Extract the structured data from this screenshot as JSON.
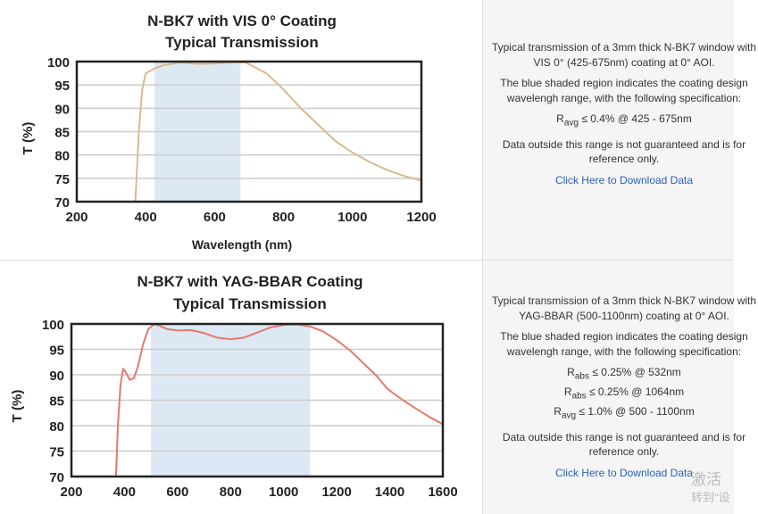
{
  "chart_data": [
    {
      "type": "line",
      "title": [
        "N-BK7 with VIS 0° Coating",
        "Typical Transmission"
      ],
      "xlabel": "Wavelength (nm)",
      "ylabel": "T (%)",
      "xlim": [
        200,
        1200
      ],
      "ylim": [
        70,
        100
      ],
      "xticks": [
        200,
        400,
        600,
        800,
        1000,
        1200
      ],
      "yticks": [
        70,
        75,
        80,
        85,
        90,
        95,
        100
      ],
      "grid": "horizontal",
      "shaded_range": [
        425,
        675
      ],
      "color": "#d9b98f",
      "shade_color": "#dce9f5",
      "x": [
        370,
        380,
        390,
        400,
        425,
        450,
        500,
        550,
        600,
        650,
        690,
        750,
        800,
        850,
        900,
        950,
        1000,
        1050,
        1100,
        1150,
        1200
      ],
      "y": [
        70,
        85,
        94,
        97.5,
        98.5,
        99.2,
        99.8,
        99.5,
        99.6,
        99.8,
        99.8,
        97.5,
        94,
        90,
        86.5,
        83,
        80.5,
        78.5,
        76.8,
        75.5,
        74.5
      ]
    },
    {
      "type": "line",
      "title": [
        "N-BK7 with YAG-BBAR Coating",
        "Typical Transmission"
      ],
      "xlabel": "",
      "ylabel": "T (%)",
      "xlim": [
        200,
        1600
      ],
      "ylim": [
        70,
        100
      ],
      "xticks": [
        200,
        400,
        600,
        800,
        1000,
        1200,
        1400,
        1600
      ],
      "yticks": [
        70,
        75,
        80,
        85,
        90,
        95,
        100
      ],
      "grid": "horizontal",
      "shaded_range": [
        500,
        1100
      ],
      "color": "#e37a6c",
      "shade_color": "#dce9f5",
      "x": [
        368,
        375,
        385,
        395,
        405,
        420,
        435,
        450,
        470,
        490,
        510,
        530,
        560,
        600,
        650,
        700,
        750,
        800,
        850,
        900,
        950,
        1000,
        1050,
        1100,
        1150,
        1200,
        1250,
        1300,
        1350,
        1390,
        1410,
        1450,
        1500,
        1550,
        1600
      ],
      "y": [
        70,
        80,
        88,
        91.2,
        90.5,
        89,
        89.3,
        91.5,
        96,
        99,
        99.9,
        99.7,
        99,
        98.7,
        98.8,
        98.2,
        97.3,
        97,
        97.3,
        98.3,
        99.3,
        99.8,
        99.9,
        99.5,
        98.5,
        96.8,
        94.8,
        92.3,
        89.8,
        87.3,
        86.5,
        85,
        83.3,
        81.7,
        80.3
      ]
    }
  ],
  "panels": [
    {
      "description": "Typical transmission of a 3mm thick N-BK7 window with VIS 0° (425-675nm) coating at 0° AOI.",
      "shaded_note": "The blue shaded region indicates the coating design wavelengh range, with the following specification:",
      "specs": [
        {
          "sym": "R",
          "sub": "avg",
          "text": "≤ 0.4% @ 425 - 675nm"
        }
      ],
      "disclaimer": "Data outside this range is not guaranteed and is for reference only.",
      "link": "Click Here to Download Data"
    },
    {
      "description": "Typical transmission of a 3mm thick N-BK7 window with YAG-BBAR (500-1100nm) coating at 0° AOI.",
      "shaded_note": "The blue shaded region indicates the coating design wavelengh range, with the following specification:",
      "specs": [
        {
          "sym": "R",
          "sub": "abs",
          "text": "≤ 0.25% @ 532nm"
        },
        {
          "sym": "R",
          "sub": "abs",
          "text": "≤ 0.25% @ 1064nm"
        },
        {
          "sym": "R",
          "sub": "avg",
          "text": "≤ 1.0% @ 500 - 1100nm"
        }
      ],
      "disclaimer": "Data outside this range is not guaranteed and is for reference only.",
      "link": "Click Here to Download Data"
    }
  ],
  "watermark": [
    "激活",
    "转到\"设"
  ]
}
